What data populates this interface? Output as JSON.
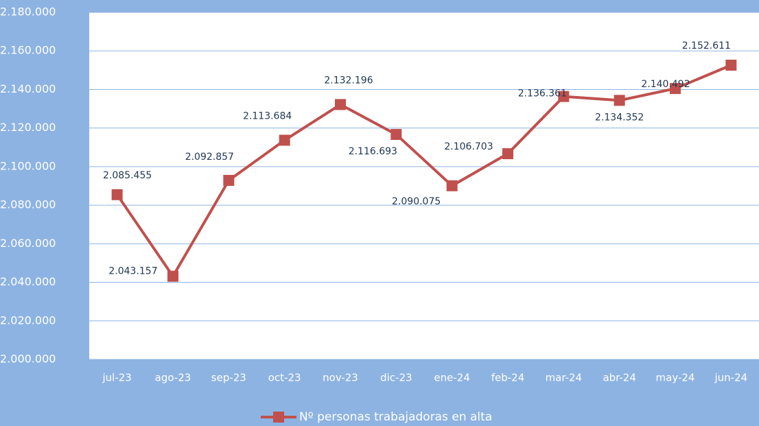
{
  "chart_data": {
    "type": "line",
    "categories": [
      "jul-23",
      "ago-23",
      "sep-23",
      "oct-23",
      "nov-23",
      "dic-23",
      "ene-24",
      "feb-24",
      "mar-24",
      "abr-24",
      "may-24",
      "jun-24"
    ],
    "series": [
      {
        "name": "Nº personas trabajadoras en alta",
        "color": "#c0504d",
        "values": [
          2085455,
          2043157,
          2092857,
          2113684,
          2132196,
          2116693,
          2090075,
          2106703,
          2136361,
          2134352,
          2140492,
          2152611
        ],
        "value_labels": [
          "2.085.455",
          "2.043.157",
          "2.092.857",
          "2.113.684",
          "2.132.196",
          "2.116.693",
          "2.090.075",
          "2.106.703",
          "2.136.361",
          "2.134.352",
          "2.140.492",
          "2.152.611"
        ]
      }
    ],
    "ylim": [
      2000000,
      2180000
    ],
    "yticks": [
      {
        "value": 2000000,
        "label": "2.000.000"
      },
      {
        "value": 2020000,
        "label": "2.020.000"
      },
      {
        "value": 2040000,
        "label": "2.040.000"
      },
      {
        "value": 2060000,
        "label": "2.060.000"
      },
      {
        "value": 2080000,
        "label": "2.080.000"
      },
      {
        "value": 2100000,
        "label": "2.100.000"
      },
      {
        "value": 2120000,
        "label": "2.120.000"
      },
      {
        "value": 2140000,
        "label": "2.140.000"
      },
      {
        "value": 2160000,
        "label": "2.160.000"
      },
      {
        "value": 2180000,
        "label": "2.180.000"
      }
    ],
    "grid": true,
    "legend": "bottom"
  }
}
